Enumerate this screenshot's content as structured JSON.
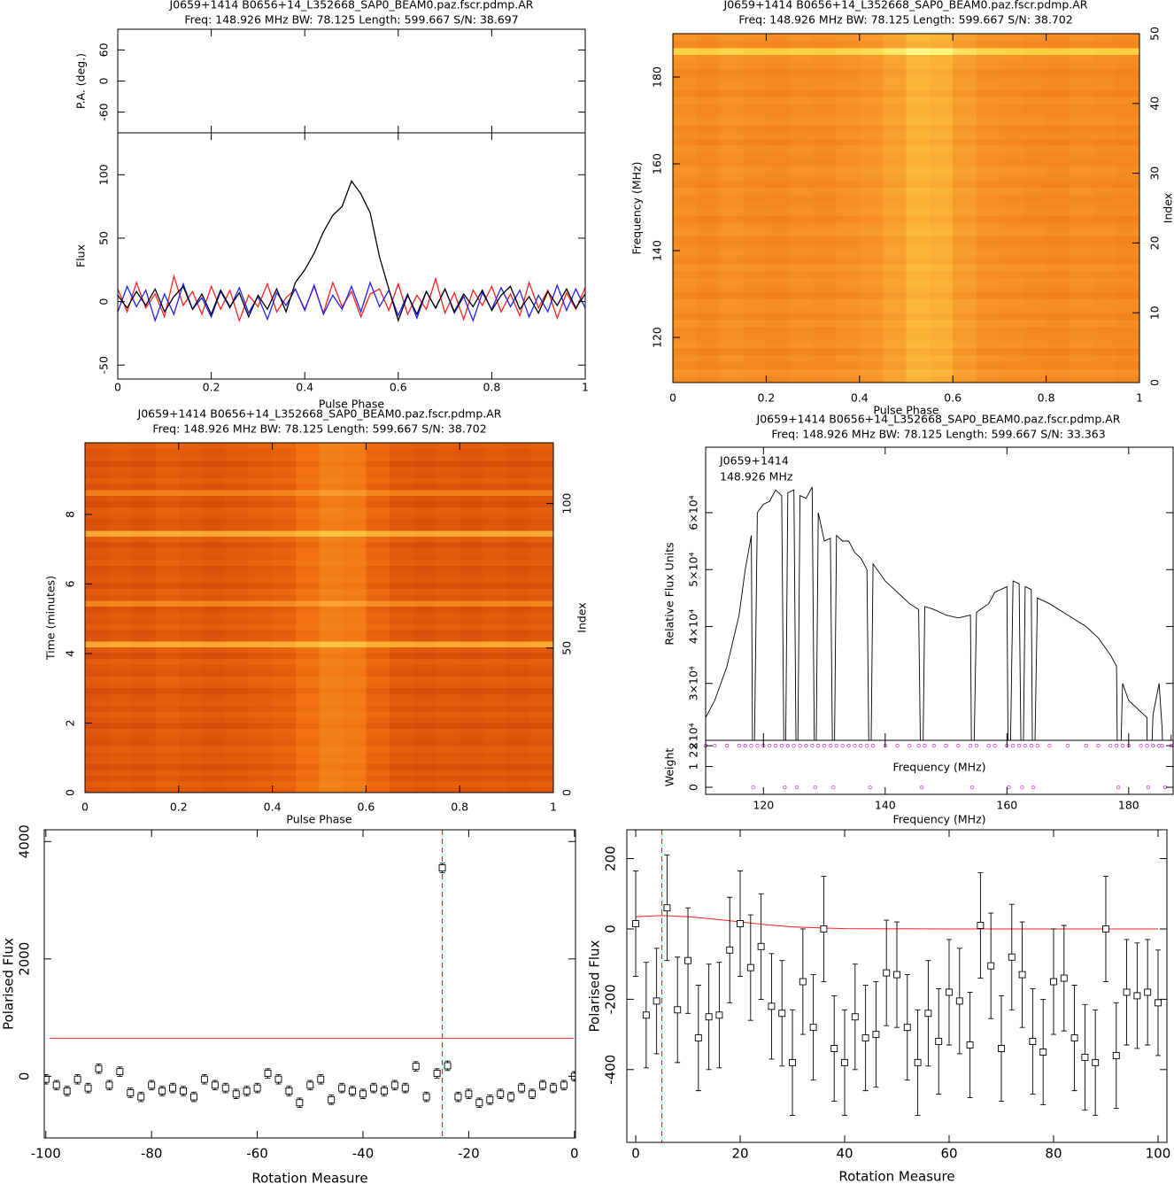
{
  "chart_data": [
    {
      "type": "line",
      "title": "J0659+1414  B0656+14_L352668_SAP0_BEAM0.paz.fscr.pdmp.AR",
      "subtitle": "Freq: 148.926 MHz BW: 78.125 Length: 599.667 S/N: 38.697",
      "xlabel": "Pulse Phase",
      "ylabel": "Flux",
      "xlim": [
        0,
        1
      ],
      "xticks": [
        0,
        0.2,
        0.4,
        0.6,
        0.8,
        1
      ],
      "ylim": [
        -61,
        133
      ],
      "yticks": [
        -50,
        0,
        50,
        100
      ],
      "pa_axis": {
        "ylabel": "P.A. (deg.)",
        "ylim": [
          -100,
          100
        ],
        "yticks": [
          -60,
          0,
          60
        ]
      },
      "x": [
        0,
        0.02,
        0.04,
        0.06,
        0.08,
        0.1,
        0.12,
        0.14,
        0.16,
        0.18,
        0.2,
        0.22,
        0.24,
        0.26,
        0.28,
        0.3,
        0.32,
        0.34,
        0.36,
        0.38,
        0.4,
        0.42,
        0.44,
        0.46,
        0.48,
        0.5,
        0.52,
        0.54,
        0.56,
        0.58,
        0.6,
        0.62,
        0.64,
        0.66,
        0.68,
        0.7,
        0.72,
        0.74,
        0.76,
        0.78,
        0.8,
        0.82,
        0.84,
        0.86,
        0.88,
        0.9,
        0.92,
        0.94,
        0.96,
        0.98,
        1
      ],
      "series": [
        {
          "color": "#ff2020",
          "values": [
            10,
            -8,
            15,
            -5,
            6,
            -12,
            20,
            -3,
            8,
            -10,
            12,
            -6,
            9,
            -15,
            5,
            -4,
            14,
            -8,
            3,
            10,
            -6,
            12,
            -9,
            15,
            -4,
            8,
            -12,
            6,
            10,
            -7,
            14,
            -10,
            5,
            -6,
            18,
            -9,
            7,
            -14,
            9,
            -3,
            12,
            -8,
            6,
            -11,
            15,
            -5,
            9,
            -13,
            7,
            -6,
            11
          ]
        },
        {
          "color": "#2020ff",
          "values": [
            -8,
            12,
            -4,
            9,
            -15,
            6,
            -10,
            14,
            -6,
            3,
            -12,
            8,
            -5,
            11,
            -9,
            4,
            -14,
            7,
            -3,
            10,
            -7,
            13,
            -10,
            5,
            -6,
            12,
            -8,
            15,
            -4,
            9,
            -11,
            6,
            -13,
            8,
            -5,
            10,
            -9,
            4,
            -15,
            7,
            -6,
            11,
            -4,
            9,
            -12,
            5,
            -8,
            13,
            -7,
            10,
            -5
          ]
        },
        {
          "color": "#000000",
          "values": [
            5,
            -5,
            8,
            -3,
            10,
            -8,
            4,
            12,
            -6,
            6,
            -10,
            9,
            -4,
            7,
            -12,
            5,
            -6,
            10,
            -8,
            15,
            25,
            38,
            55,
            68,
            75,
            95,
            85,
            70,
            35,
            10,
            -15,
            5,
            -10,
            8,
            -5,
            10,
            -8,
            6,
            -4,
            9,
            -7,
            5,
            12,
            -6,
            4,
            -9,
            8,
            -3,
            10,
            -5,
            6
          ]
        }
      ]
    },
    {
      "type": "heatmap",
      "title": "J0659+1414  B0656+14_L352668_SAP0_BEAM0.paz.fscr.pdmp.AR",
      "subtitle": "Freq: 148.926 MHz BW: 78.125 Length: 599.667 S/N: 38.702",
      "xlabel": "Pulse Phase",
      "ylabel": "Frequency (MHz)",
      "y2label": "Index",
      "xlim": [
        0,
        1
      ],
      "xticks": [
        0,
        0.2,
        0.4,
        0.6,
        0.8,
        1
      ],
      "ylim": [
        109.6,
        190
      ],
      "yticks": [
        120,
        140,
        160,
        180
      ],
      "y2lim": [
        0,
        50
      ],
      "y2ticks": [
        0,
        10,
        20,
        30,
        40,
        50
      ],
      "colormap": [
        "#5a0000",
        "#b82000",
        "#f07010",
        "#f8a030",
        "#ffd040",
        "#ffff90"
      ],
      "columns": [
        0.52,
        0.5,
        0.53,
        0.51,
        0.5,
        0.52,
        0.51,
        0.53,
        0.55,
        0.6,
        0.68,
        0.66,
        0.58,
        0.53,
        0.52,
        0.51,
        0.5,
        0.52,
        0.51,
        0.5
      ],
      "rows": [
        0,
        0.03,
        -0.02,
        0.01,
        -0.03,
        0.02,
        0,
        -0.01,
        0.03,
        -0.02,
        0.01,
        0.02,
        -0.03,
        0,
        0.02,
        -0.01,
        0.03,
        -0.02,
        0.01,
        0,
        -0.02,
        0.03,
        0.01,
        -0.03,
        0.02,
        0,
        -0.01,
        0.02,
        -0.02,
        0.01,
        0.03,
        -0.01,
        0,
        0.02,
        -0.03,
        0.01,
        -0.02,
        0.03,
        0,
        -0.01,
        0.02,
        -0.03,
        0.01,
        0,
        -0.02,
        0.01,
        0.02,
        0.3,
        -0.01,
        0.02
      ]
    },
    {
      "type": "heatmap",
      "title": "J0659+1414  B0656+14_L352668_SAP0_BEAM0.paz.fscr.pdmp.AR",
      "subtitle": "Freq: 148.926 MHz BW: 78.125 Length: 599.667 S/N: 38.702",
      "xlabel": "Pulse Phase",
      "ylabel": "Time (minutes)",
      "y2label": "Index",
      "xlim": [
        0,
        1
      ],
      "xticks": [
        0,
        0.2,
        0.4,
        0.6,
        0.8,
        1
      ],
      "ylim": [
        0,
        10.06
      ],
      "yticks": [
        0,
        2,
        4,
        6,
        8
      ],
      "y2lim": [
        0,
        121
      ],
      "y2ticks": [
        0,
        50,
        100
      ],
      "colormap": [
        "#5a0000",
        "#b82000",
        "#f07010",
        "#f8a030",
        "#ffd040",
        "#ffff90"
      ],
      "columns": [
        0.33,
        0.34,
        0.33,
        0.35,
        0.34,
        0.33,
        0.34,
        0.35,
        0.36,
        0.4,
        0.46,
        0.44,
        0.37,
        0.34,
        0.33,
        0.34,
        0.33,
        0.34,
        0.33,
        0.34
      ],
      "rows": [
        0,
        0.02,
        -0.01,
        0.01,
        -0.02,
        0.01,
        0,
        0.02,
        -0.01,
        0,
        0.01,
        -0.02,
        0,
        0.02,
        -0.01,
        0.01,
        0,
        -0.02,
        0.01,
        0.02,
        -0.01,
        0,
        0.02,
        -0.02,
        0.01,
        0.3,
        0,
        -0.01,
        0.02,
        0,
        0.01,
        -0.01,
        0.15,
        0,
        0.02,
        -0.02,
        0.01,
        0,
        -0.01,
        0.02,
        0,
        0.01,
        -0.02,
        0.02,
        0.3,
        0,
        -0.01,
        0.01,
        0.02,
        -0.02,
        0,
        0.12,
        -0.01,
        0.02,
        0,
        0.01,
        -0.02,
        0.01,
        0,
        0.02
      ]
    },
    {
      "type": "spectrum",
      "title": "J0659+1414  B0656+14_L352668_SAP0_BEAM0.paz.fscr.pdmp.AR",
      "subtitle": "Freq: 148.926 MHz BW: 78.125 Length: 599.667 S/N: 33.363",
      "annotations": [
        "J0659+1414",
        "148.926 MHz"
      ],
      "xlabel": "Frequency (MHz)",
      "ylabel": "Relative Flux Units",
      "xlim": [
        110.5,
        187.3
      ],
      "xticks": [
        120,
        140,
        160,
        180
      ],
      "ylim": [
        20000,
        71500
      ],
      "yticks": [
        {
          "value": 20000,
          "label": "2×10⁴"
        },
        {
          "value": 30000,
          "label": "3×10⁴"
        },
        {
          "value": 40000,
          "label": "4×10⁴"
        },
        {
          "value": 50000,
          "label": "5×10⁴"
        },
        {
          "value": 60000,
          "label": "6×10⁴"
        }
      ],
      "weight_axis": {
        "ylabel": "Weight",
        "ylim": [
          -0.34,
          2.26
        ],
        "yticks": [
          0,
          1,
          2
        ]
      },
      "color": "#000000",
      "weight_color": "#e040e0",
      "x": [
        110.5,
        112,
        114,
        116,
        117,
        118,
        118.3,
        119,
        120,
        121,
        122,
        123,
        123.5,
        124,
        125,
        125.5,
        126,
        127,
        128,
        128.5,
        129,
        130,
        131,
        131.5,
        132,
        133,
        134,
        135,
        136,
        137,
        137.5,
        138,
        140,
        142,
        144,
        145.5,
        146,
        146.5,
        148,
        150,
        152,
        154,
        154.3,
        155,
        157,
        158,
        160,
        160.3,
        161,
        162,
        162.5,
        163,
        164,
        164.3,
        165,
        167,
        170,
        173,
        175,
        177,
        178,
        178.3,
        179,
        180,
        182,
        183,
        183.2,
        184,
        185,
        185.5,
        186,
        187
      ],
      "values": [
        24000,
        27000,
        33000,
        42000,
        50000,
        56000,
        0,
        60000,
        61500,
        62000,
        64000,
        63000,
        0,
        63500,
        64000,
        0,
        63000,
        62500,
        64500,
        0,
        60000,
        55000,
        55500,
        0,
        56000,
        55000,
        55000,
        53000,
        52000,
        50000,
        0,
        51000,
        48000,
        46000,
        44000,
        43000,
        0,
        43500,
        43000,
        42000,
        41500,
        42000,
        0,
        42500,
        44000,
        46000,
        47000,
        0,
        48000,
        47500,
        0,
        47000,
        46500,
        0,
        45000,
        44000,
        42000,
        40000,
        38000,
        35000,
        33000,
        0,
        30000,
        27000,
        25000,
        24000,
        0,
        24500,
        30000,
        22000,
        0,
        21000
      ],
      "weights": [
        2,
        2,
        2,
        2,
        2,
        2,
        0,
        2,
        2,
        2,
        2,
        2,
        0,
        2,
        2,
        0,
        2,
        2,
        2,
        0,
        2,
        2,
        2,
        0,
        2,
        2,
        2,
        2,
        2,
        2,
        0,
        2,
        2,
        2,
        2,
        2,
        0,
        2,
        2,
        2,
        2,
        2,
        0,
        2,
        2,
        2,
        2,
        0,
        2,
        2,
        0,
        2,
        2,
        0,
        2,
        2,
        2,
        2,
        2,
        2,
        2,
        0,
        2,
        2,
        2,
        2,
        0,
        2,
        2,
        2,
        0,
        2
      ]
    },
    {
      "type": "scatter",
      "xlabel": "Rotation Measure",
      "ylabel": "Polarised Flux",
      "xlim": [
        -100.3,
        0.2
      ],
      "xticks": [
        -100,
        -80,
        -60,
        -40,
        -20,
        0
      ],
      "ylim": [
        -1050,
        4200
      ],
      "yticks": [
        0,
        2000,
        4000
      ],
      "color": "#000000",
      "line_color": "#ff2020",
      "hline": 650,
      "vline": -25,
      "error": 80,
      "x": [
        -100,
        -98,
        -96,
        -94,
        -92,
        -90,
        -88,
        -86,
        -84,
        -82,
        -80,
        -78,
        -76,
        -74,
        -72,
        -70,
        -68,
        -66,
        -64,
        -62,
        -60,
        -58,
        -56,
        -54,
        -52,
        -50,
        -48,
        -46,
        -44,
        -42,
        -40,
        -38,
        -36,
        -34,
        -32,
        -30,
        -28,
        -26,
        -25,
        -24,
        -22,
        -20,
        -18,
        -16,
        -14,
        -12,
        -10,
        -8,
        -6,
        -4,
        -2,
        0
      ],
      "values": [
        -50,
        -150,
        -250,
        -50,
        -200,
        130,
        -150,
        80,
        -280,
        -350,
        -150,
        -250,
        -200,
        -250,
        -350,
        -50,
        -150,
        -200,
        -300,
        -250,
        -200,
        50,
        -50,
        -250,
        -450,
        -150,
        -50,
        -400,
        -200,
        -250,
        -300,
        -200,
        -250,
        -150,
        -200,
        170,
        -350,
        50,
        3550,
        180,
        -350,
        -300,
        -450,
        -400,
        -300,
        -350,
        -200,
        -300,
        -150,
        -200,
        -150,
        0
      ]
    },
    {
      "type": "scatter",
      "xlabel": "Rotation Measure",
      "ylabel": "Polarised Flux",
      "xlim": [
        -1.7,
        101.7
      ],
      "xticks": [
        0,
        20,
        40,
        60,
        80,
        100
      ],
      "ylim": [
        -607,
        282
      ],
      "yticks": [
        -400,
        -200,
        0,
        200
      ],
      "color": "#000000",
      "line_color": "#ff2020",
      "vline": 5,
      "error": 150,
      "curve": {
        "x": [
          0,
          5,
          10,
          15,
          20,
          25,
          30,
          35,
          40,
          60,
          80,
          100
        ],
        "values": [
          35,
          38,
          35,
          28,
          20,
          12,
          6,
          3,
          1,
          0,
          0,
          0
        ]
      },
      "x": [
        0,
        2,
        4,
        6,
        8,
        10,
        12,
        14,
        16,
        18,
        20,
        22,
        24,
        26,
        28,
        30,
        32,
        34,
        36,
        38,
        40,
        42,
        44,
        46,
        48,
        50,
        52,
        54,
        56,
        58,
        60,
        62,
        64,
        66,
        68,
        70,
        72,
        74,
        76,
        78,
        80,
        82,
        84,
        86,
        88,
        90,
        92,
        94,
        96,
        98,
        100
      ],
      "values": [
        15,
        -245,
        -205,
        60,
        -230,
        -90,
        -310,
        -250,
        -245,
        -60,
        15,
        -110,
        -50,
        -220,
        -240,
        -380,
        -150,
        -280,
        0,
        -340,
        -380,
        -250,
        -310,
        -300,
        -125,
        -130,
        -280,
        -380,
        -240,
        -320,
        -180,
        -205,
        -330,
        10,
        -105,
        -340,
        -80,
        -130,
        -320,
        -350,
        -150,
        -140,
        -310,
        -365,
        -380,
        0,
        -360,
        -180,
        -190,
        -180,
        -210
      ]
    }
  ]
}
